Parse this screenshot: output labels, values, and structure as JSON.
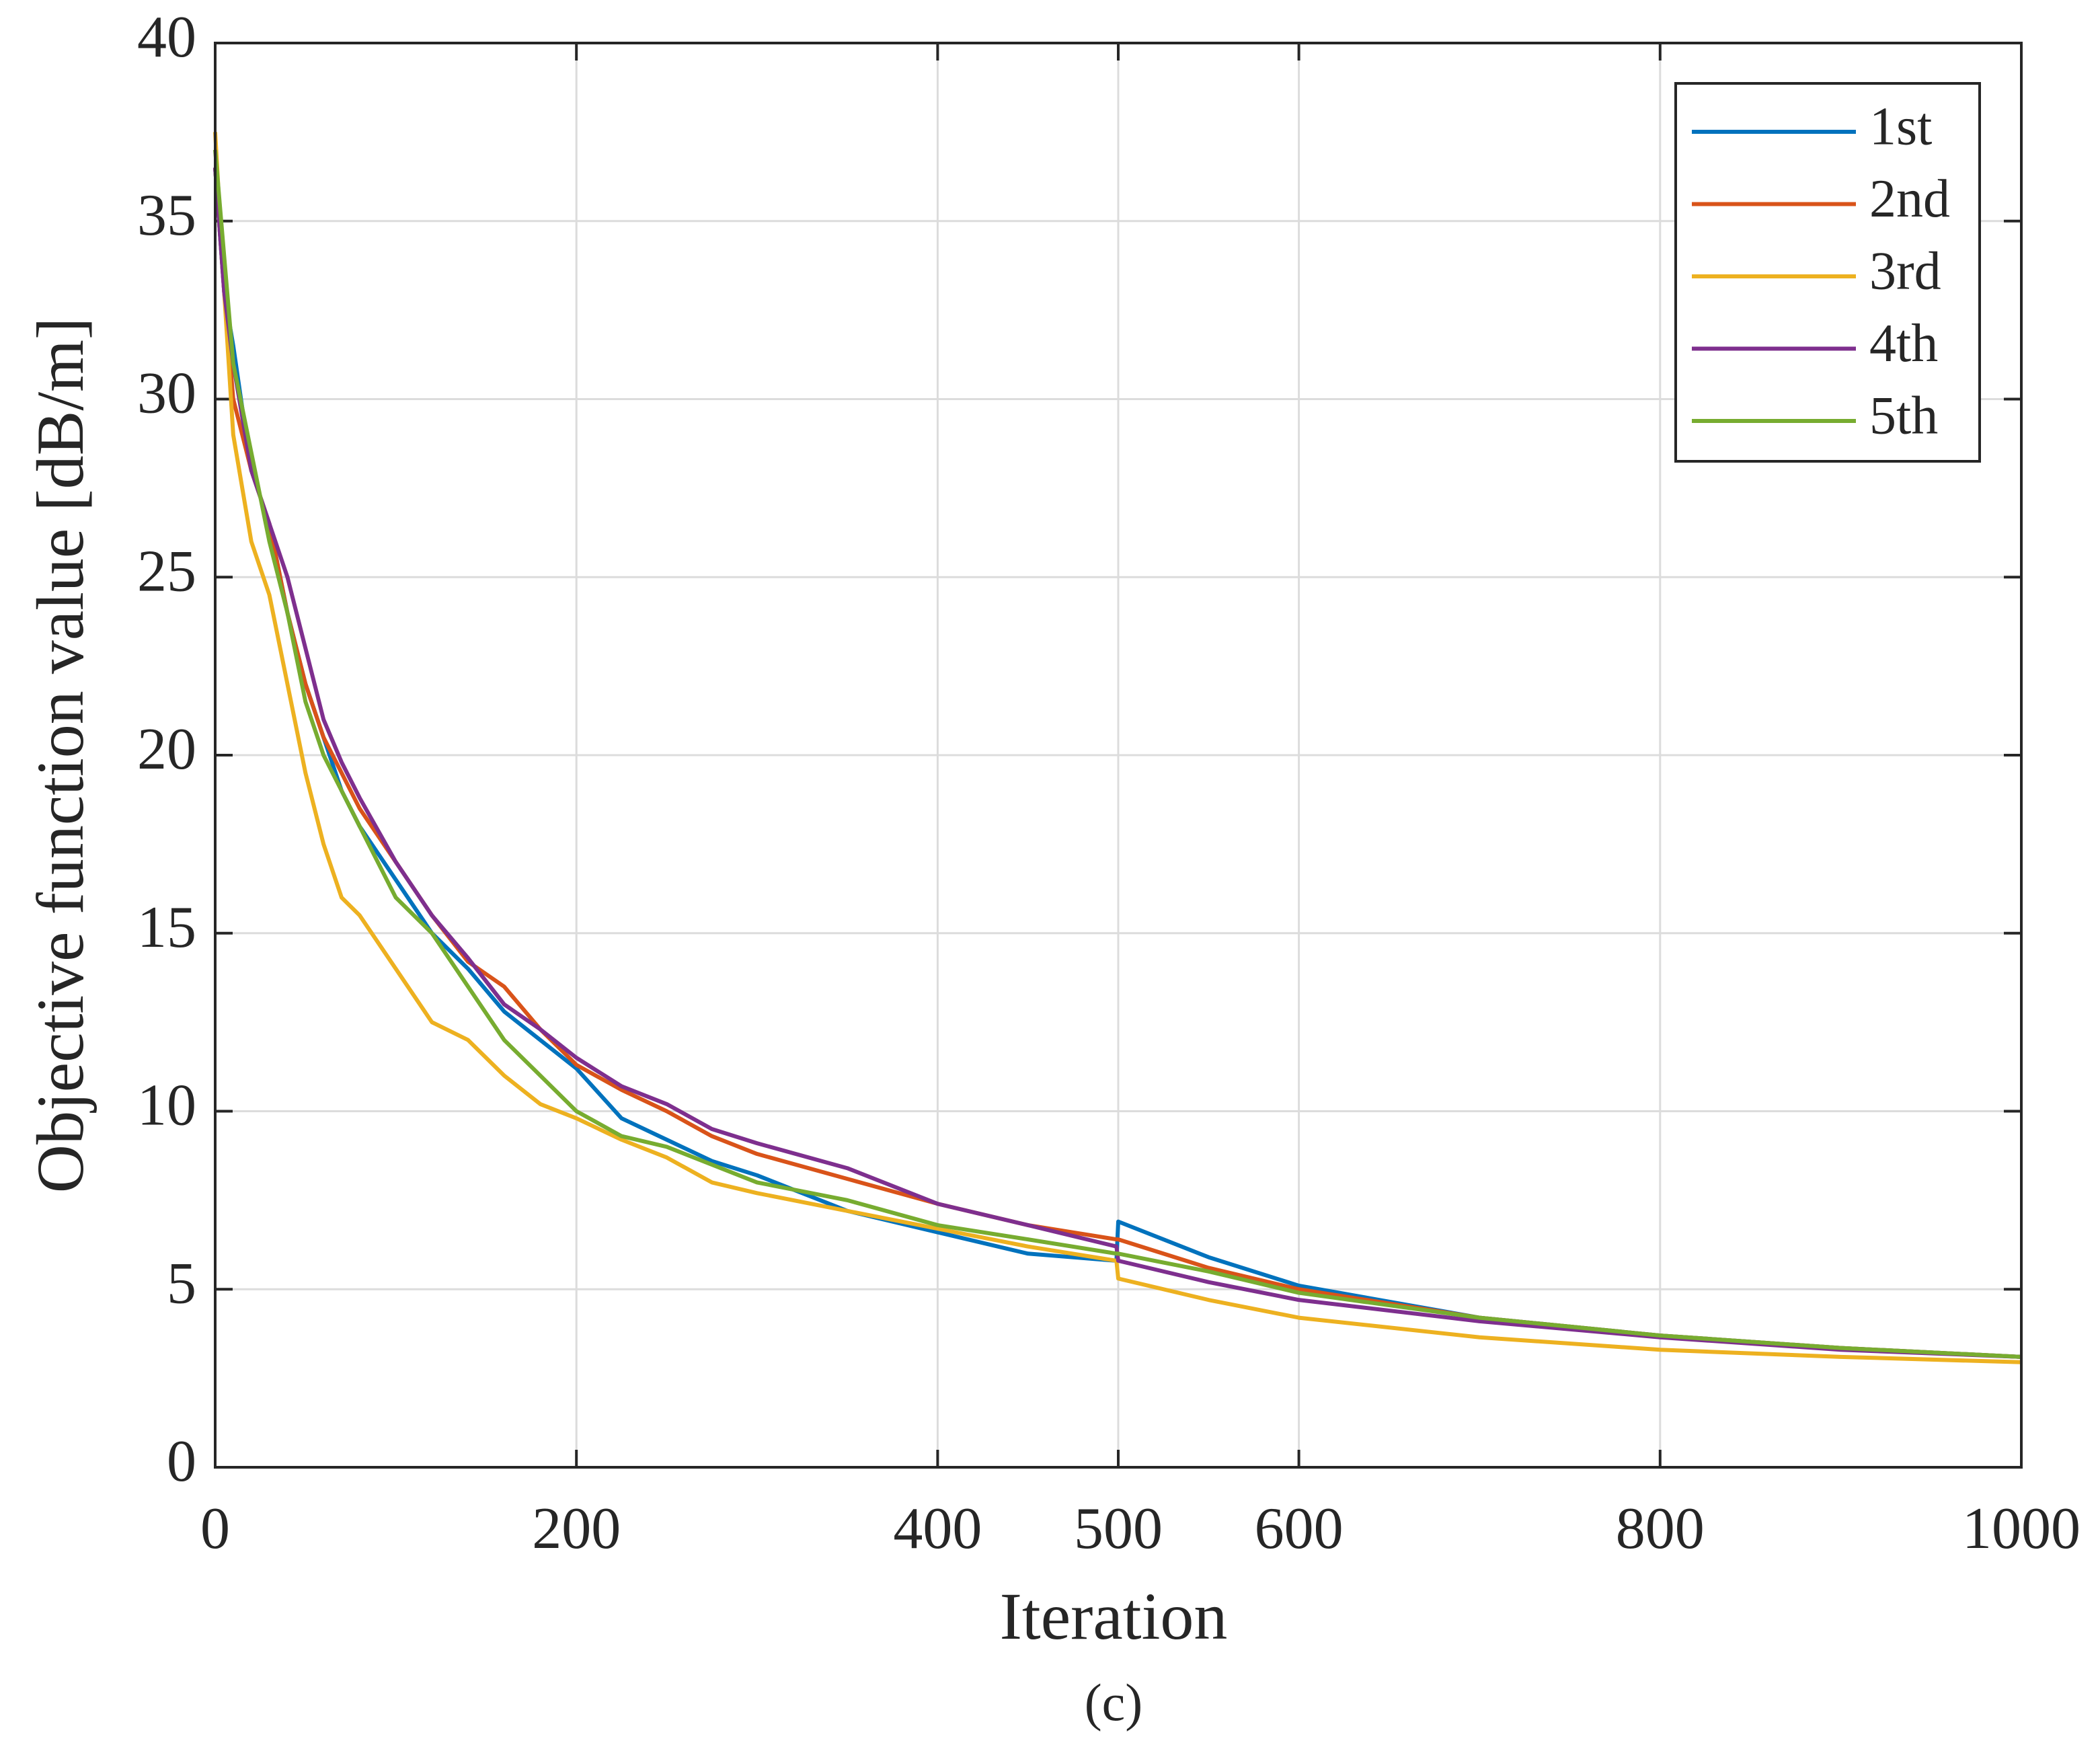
{
  "chart_data": {
    "type": "line",
    "xlabel": "Iteration",
    "ylabel": "Objective function value [dB/m]",
    "caption": "(c)",
    "x": [
      0,
      5,
      10,
      20,
      30,
      40,
      50,
      60,
      70,
      80,
      100,
      120,
      140,
      160,
      180,
      200,
      225,
      250,
      275,
      300,
      350,
      400,
      450,
      499,
      500,
      550,
      600,
      700,
      800,
      900,
      1000
    ],
    "series": [
      {
        "name": "1st",
        "color": "#0072bd",
        "values": [
          36.5,
          33,
          31.5,
          28,
          26.5,
          24,
          22,
          20.5,
          19,
          18,
          16.5,
          15,
          14,
          12.8,
          12,
          11.2,
          9.8,
          9.2,
          8.6,
          8.2,
          7.2,
          6.6,
          6.0,
          5.8,
          6.9,
          5.9,
          5.1,
          4.2,
          3.7,
          3.35,
          3.1
        ]
      },
      {
        "name": "2nd",
        "color": "#d95319",
        "values": [
          36.5,
          33,
          30,
          28,
          26.5,
          24,
          22,
          20.5,
          19.5,
          18.5,
          17,
          15.5,
          14.2,
          13.5,
          12.3,
          11.3,
          10.6,
          10,
          9.3,
          8.8,
          8.1,
          7.4,
          6.8,
          6.4,
          6.4,
          5.6,
          5.0,
          4.2,
          3.7,
          3.35,
          3.1
        ]
      },
      {
        "name": "3rd",
        "color": "#edb120",
        "values": [
          37.5,
          33,
          29,
          26,
          24.5,
          22,
          19.5,
          17.5,
          16,
          15.5,
          14,
          12.5,
          12,
          11,
          10.2,
          9.8,
          9.2,
          8.7,
          8,
          7.7,
          7.2,
          6.7,
          6.2,
          5.8,
          5.3,
          4.7,
          4.2,
          3.65,
          3.3,
          3.1,
          2.95
        ]
      },
      {
        "name": "4th",
        "color": "#7e2f8e",
        "values": [
          36.5,
          33,
          31,
          28,
          26.5,
          25,
          23,
          21,
          19.8,
          18.8,
          17,
          15.5,
          14.3,
          13,
          12.3,
          11.5,
          10.7,
          10.2,
          9.5,
          9.1,
          8.4,
          7.4,
          6.8,
          6.2,
          5.8,
          5.2,
          4.7,
          4.1,
          3.65,
          3.3,
          3.1
        ]
      },
      {
        "name": "5th",
        "color": "#77ac30",
        "values": [
          37,
          34,
          31,
          28.5,
          26,
          24,
          21.5,
          20,
          19,
          18,
          16,
          15,
          13.5,
          12,
          11,
          10,
          9.3,
          9,
          8.5,
          8,
          7.5,
          6.8,
          6.4,
          6.0,
          6.0,
          5.5,
          4.9,
          4.2,
          3.7,
          3.35,
          3.1
        ]
      }
    ],
    "xlim": [
      0,
      1000
    ],
    "xticks": [
      0,
      200,
      400,
      500,
      600,
      800,
      1000
    ],
    "ylim": [
      0,
      40
    ],
    "yticks": [
      0,
      5,
      10,
      15,
      20,
      25,
      30,
      35,
      40
    ],
    "grid": true,
    "legend": "upper right"
  }
}
